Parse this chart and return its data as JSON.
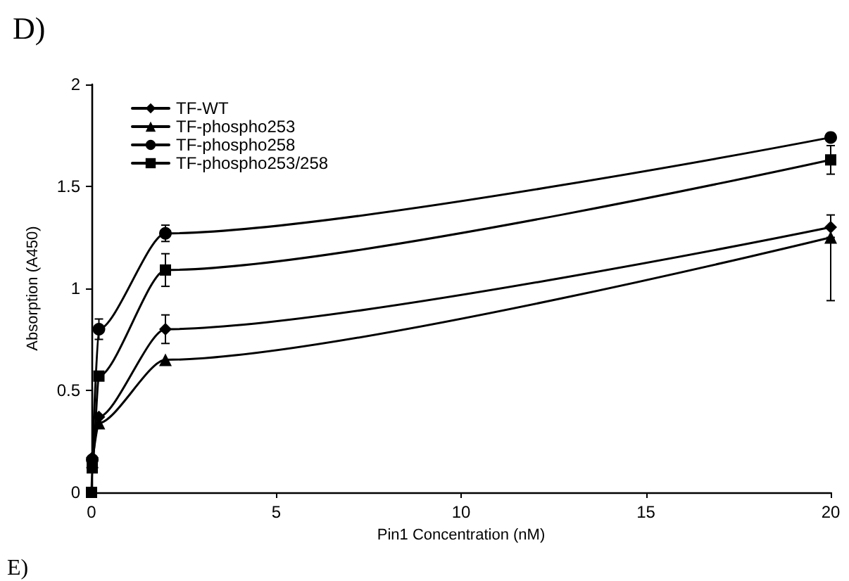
{
  "chart_data": {
    "type": "line",
    "title": "D)",
    "xlabel": "Pin1 Concentration (nM)",
    "ylabel": "Absorption (A450)",
    "annotations": [
      "E)"
    ],
    "x": [
      0,
      0.02,
      0.2,
      2,
      20
    ],
    "series": [
      {
        "name": "TF-WT",
        "color": "#000000",
        "marker": "diamond",
        "values": [
          null,
          0.17,
          0.37,
          0.8,
          1.3
        ],
        "errors": [
          null,
          null,
          null,
          0.07,
          0.06
        ]
      },
      {
        "name": "TF-phospho253",
        "color": "#000000",
        "marker": "triangle",
        "values": [
          null,
          0.15,
          0.34,
          0.65,
          1.25
        ],
        "errors": [
          null,
          null,
          null,
          null,
          [
            0.94,
            1.25
          ]
        ]
      },
      {
        "name": "TF-phospho258",
        "color": "#000000",
        "marker": "circle",
        "values": [
          null,
          0.16,
          0.8,
          1.27,
          1.74
        ],
        "errors": [
          null,
          null,
          0.05,
          0.04,
          null
        ]
      },
      {
        "name": "TF-phospho253/258",
        "color": "#000000",
        "marker": "square",
        "values": [
          0,
          0.12,
          0.57,
          1.09,
          1.63
        ],
        "errors": [
          null,
          null,
          null,
          0.08,
          0.07
        ]
      }
    ],
    "xlim": [
      0,
      20
    ],
    "xticks": [
      0,
      5,
      10,
      15,
      20
    ],
    "ylim": [
      0,
      2
    ],
    "yticks": [
      0,
      0.5,
      1,
      1.5,
      2
    ],
    "grid": false,
    "legend": "top left",
    "line_style": "solid"
  }
}
